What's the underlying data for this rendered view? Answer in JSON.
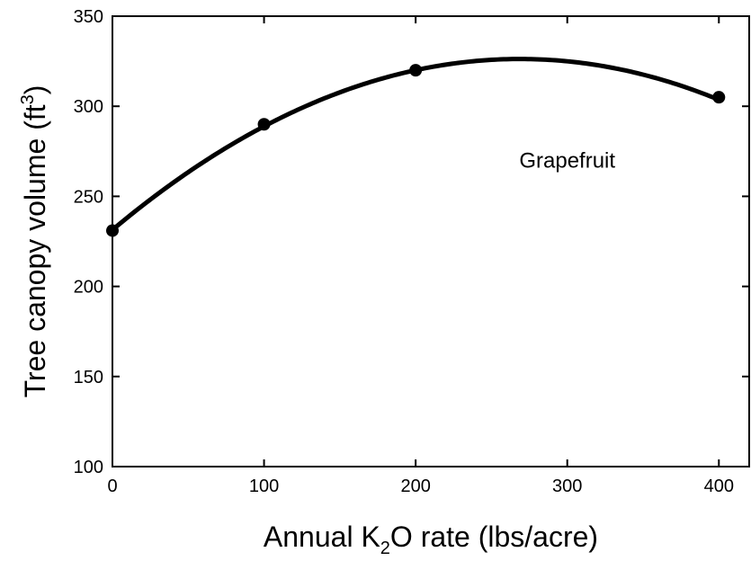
{
  "chart_data": {
    "type": "scatter",
    "title": "",
    "xlabel": {
      "pre": "Annual K",
      "sub": "2",
      "post": "O rate (lbs/acre)"
    },
    "ylabel": {
      "pre": "Tree canopy volume (ft",
      "sup": "3",
      "post": ")"
    },
    "xlim": [
      0,
      420
    ],
    "ylim": [
      100,
      350
    ],
    "xticks": [
      0,
      100,
      200,
      300,
      400
    ],
    "yticks": [
      100,
      150,
      200,
      250,
      300,
      350
    ],
    "x_tick_labels": [
      "0",
      "100",
      "200",
      "300",
      "400"
    ],
    "y_tick_labels": [
      "100",
      "150",
      "200",
      "250",
      "300",
      "350"
    ],
    "grid": false,
    "series": [
      {
        "points": [
          {
            "x": 0,
            "y": 231
          },
          {
            "x": 100,
            "y": 290
          },
          {
            "x": 200,
            "y": 320
          },
          {
            "x": 400,
            "y": 305
          }
        ],
        "fit": {
          "type": "quadratic",
          "coefficients": [
            231.4,
            0.70575,
            -0.001313
          ]
        }
      }
    ],
    "annotations": [
      {
        "text": "Grapefruit",
        "x": 300,
        "y": 266
      }
    ],
    "colors": {
      "line": "#000000",
      "marker": "#000000"
    }
  }
}
